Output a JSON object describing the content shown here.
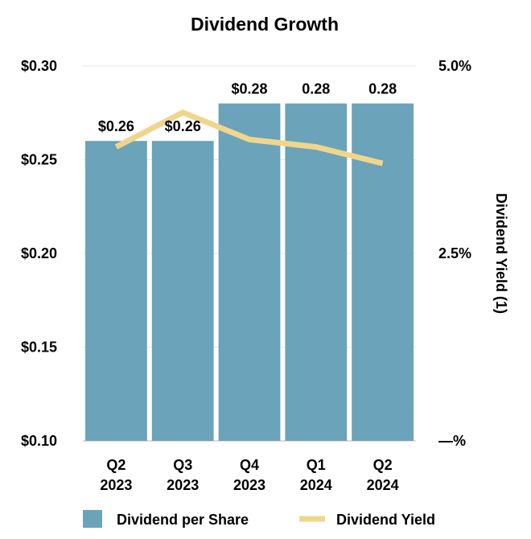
{
  "chart_data": {
    "type": "bar",
    "title": "Dividend Growth",
    "categories": [
      {
        "line1": "Q2",
        "line2": "2023"
      },
      {
        "line1": "Q3",
        "line2": "2023"
      },
      {
        "line1": "Q4",
        "line2": "2023"
      },
      {
        "line1": "Q1",
        "line2": "2024"
      },
      {
        "line1": "Q2",
        "line2": "2024"
      }
    ],
    "series": [
      {
        "name": "Dividend per Share",
        "kind": "bar",
        "axis": "left",
        "color": "#6aa3ba",
        "values": [
          0.26,
          0.26,
          0.28,
          0.28,
          0.28
        ],
        "data_labels": [
          "$0.26",
          "$0.26",
          "$0.28",
          "0.28",
          "0.28"
        ]
      },
      {
        "name": "Dividend Yield",
        "kind": "line",
        "axis": "right",
        "color": "#f0d58c",
        "values": [
          3.92,
          4.38,
          4.02,
          3.92,
          3.7
        ]
      }
    ],
    "y_left": {
      "min": 0.1,
      "max": 0.3,
      "ticks": [
        0.3,
        0.25,
        0.2,
        0.15,
        0.1
      ],
      "tick_labels": [
        "$0.30",
        "$0.25",
        "$0.20",
        "$0.15",
        "$0.10"
      ],
      "label": ""
    },
    "y_right": {
      "min": 0,
      "max": 5.0,
      "ticks": [
        5.0,
        2.5,
        0
      ],
      "tick_labels": [
        "5.0%",
        "2.5%",
        "—%"
      ],
      "label": "Dividend Yield (1)"
    },
    "grid": true,
    "legend_position": "bottom"
  }
}
